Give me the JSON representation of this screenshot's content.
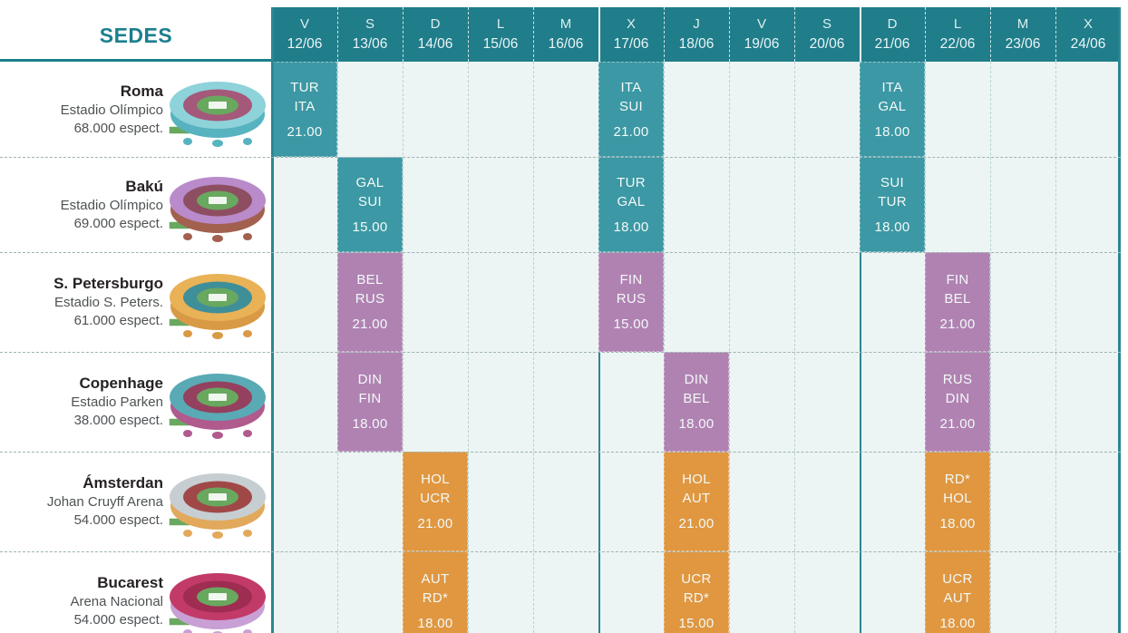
{
  "title": {
    "label": "SEDES"
  },
  "colors": {
    "header_teal": "#207d8a",
    "accent_teal": "#1b7f8e",
    "body_bg": "#ecf5f4",
    "solid_line_teal": "#2a8793",
    "teal": "#3c98a4",
    "purple": "#b082b2",
    "orange": "#e09740"
  },
  "columns": [
    {
      "day": "V",
      "date": "12/06"
    },
    {
      "day": "S",
      "date": "13/06"
    },
    {
      "day": "D",
      "date": "14/06"
    },
    {
      "day": "L",
      "date": "15/06"
    },
    {
      "day": "M",
      "date": "16/06"
    },
    {
      "day": "X",
      "date": "17/06"
    },
    {
      "day": "J",
      "date": "18/06"
    },
    {
      "day": "V",
      "date": "19/06"
    },
    {
      "day": "S",
      "date": "20/06"
    },
    {
      "day": "D",
      "date": "21/06"
    },
    {
      "day": "L",
      "date": "22/06"
    },
    {
      "day": "M",
      "date": "23/06"
    },
    {
      "day": "X",
      "date": "24/06"
    }
  ],
  "group_separators_before_dates": [
    "17/06",
    "21/06"
  ],
  "venues": [
    {
      "name": "Roma",
      "stadium": "Estadio Olímpico",
      "capacity": "68.000 espect.",
      "icon": "stadium-roma-icon",
      "icon_colors": {
        "ring": "#8ed2da",
        "wall": "#57b3c0",
        "inner": "#a4587a",
        "field": "#69a85f"
      },
      "matches": [
        {
          "date": "12/06",
          "home": "TUR",
          "away": "ITA",
          "time": "21.00",
          "color": "teal"
        },
        {
          "date": "17/06",
          "home": "ITA",
          "away": "SUI",
          "time": "21.00",
          "color": "teal"
        },
        {
          "date": "21/06",
          "home": "ITA",
          "away": "GAL",
          "time": "18.00",
          "color": "teal"
        }
      ]
    },
    {
      "name": "Bakú",
      "stadium": "Estadio Olímpico",
      "capacity": "69.000 espect.",
      "icon": "stadium-baku-icon",
      "icon_colors": {
        "ring": "#b98bca",
        "wall": "#a2604f",
        "inner": "#8e4e62",
        "field": "#69a85f"
      },
      "matches": [
        {
          "date": "13/06",
          "home": "GAL",
          "away": "SUI",
          "time": "15.00",
          "color": "teal"
        },
        {
          "date": "17/06",
          "home": "TUR",
          "away": "GAL",
          "time": "18.00",
          "color": "teal"
        },
        {
          "date": "21/06",
          "home": "SUI",
          "away": "TUR",
          "time": "18.00",
          "color": "teal"
        }
      ]
    },
    {
      "name": "S. Petersburgo",
      "stadium": "Estadio S. Peters.",
      "capacity": "61.000 espect.",
      "icon": "stadium-petersburgo-icon",
      "icon_colors": {
        "ring": "#e9b257",
        "wall": "#d99a45",
        "inner": "#3f8f99",
        "field": "#69a85f"
      },
      "matches": [
        {
          "date": "13/06",
          "home": "BEL",
          "away": "RUS",
          "time": "21.00",
          "color": "purple"
        },
        {
          "date": "17/06",
          "home": "FIN",
          "away": "RUS",
          "time": "15.00",
          "color": "purple"
        },
        {
          "date": "22/06",
          "home": "FIN",
          "away": "BEL",
          "time": "21.00",
          "color": "purple"
        }
      ]
    },
    {
      "name": "Copenhage",
      "stadium": "Estadio Parken",
      "capacity": "38.000 espect.",
      "icon": "stadium-copenhage-icon",
      "icon_colors": {
        "ring": "#59aab4",
        "wall": "#b05a8e",
        "inner": "#94405e",
        "field": "#69a85f"
      },
      "matches": [
        {
          "date": "13/06",
          "home": "DIN",
          "away": "FIN",
          "time": "18.00",
          "color": "purple"
        },
        {
          "date": "18/06",
          "home": "DIN",
          "away": "BEL",
          "time": "18.00",
          "color": "purple"
        },
        {
          "date": "22/06",
          "home": "RUS",
          "away": "DIN",
          "time": "21.00",
          "color": "purple"
        }
      ]
    },
    {
      "name": "Ámsterdan",
      "stadium": "Johan Cruyff Arena",
      "capacity": "54.000 espect.",
      "icon": "stadium-amsterdam-icon",
      "icon_colors": {
        "ring": "#c6ced2",
        "wall": "#e2a95c",
        "inner": "#a04848",
        "field": "#69a85f"
      },
      "matches": [
        {
          "date": "14/06",
          "home": "HOL",
          "away": "UCR",
          "time": "21.00",
          "color": "orange"
        },
        {
          "date": "18/06",
          "home": "HOL",
          "away": "AUT",
          "time": "21.00",
          "color": "orange"
        },
        {
          "date": "22/06",
          "home": "RD*",
          "away": "HOL",
          "time": "18.00",
          "color": "orange"
        }
      ]
    },
    {
      "name": "Bucarest",
      "stadium": "Arena Nacional",
      "capacity": "54.000 espect.",
      "icon": "stadium-bucarest-icon",
      "icon_colors": {
        "ring": "#c23a68",
        "wall": "#c8a0d5",
        "inner": "#9e2d51",
        "field": "#69a85f"
      },
      "matches": [
        {
          "date": "14/06",
          "home": "AUT",
          "away": "RD*",
          "time": "18.00",
          "color": "orange"
        },
        {
          "date": "18/06",
          "home": "UCR",
          "away": "RD*",
          "time": "15.00",
          "color": "orange"
        },
        {
          "date": "22/06",
          "home": "UCR",
          "away": "AUT",
          "time": "18.00",
          "color": "orange"
        }
      ]
    }
  ],
  "chart_data": {
    "type": "table",
    "title": "SEDES",
    "columns": [
      "V 12/06",
      "S 13/06",
      "D 14/06",
      "L 15/06",
      "M 16/06",
      "X 17/06",
      "J 18/06",
      "V 19/06",
      "S 20/06",
      "D 21/06",
      "L 22/06",
      "M 23/06",
      "X 24/06"
    ],
    "rows": [
      {
        "venue": "Roma",
        "stadium": "Estadio Olímpico",
        "capacity": "68.000 espect.",
        "matches": [
          {
            "date": "12/06",
            "teams": "TUR-ITA",
            "time": "21.00"
          },
          {
            "date": "17/06",
            "teams": "ITA-SUI",
            "time": "21.00"
          },
          {
            "date": "21/06",
            "teams": "ITA-GAL",
            "time": "18.00"
          }
        ]
      },
      {
        "venue": "Bakú",
        "stadium": "Estadio Olímpico",
        "capacity": "69.000 espect.",
        "matches": [
          {
            "date": "13/06",
            "teams": "GAL-SUI",
            "time": "15.00"
          },
          {
            "date": "17/06",
            "teams": "TUR-GAL",
            "time": "18.00"
          },
          {
            "date": "21/06",
            "teams": "SUI-TUR",
            "time": "18.00"
          }
        ]
      },
      {
        "venue": "S. Petersburgo",
        "stadium": "Estadio S. Peters.",
        "capacity": "61.000 espect.",
        "matches": [
          {
            "date": "13/06",
            "teams": "BEL-RUS",
            "time": "21.00"
          },
          {
            "date": "17/06",
            "teams": "FIN-RUS",
            "time": "15.00"
          },
          {
            "date": "22/06",
            "teams": "FIN-BEL",
            "time": "21.00"
          }
        ]
      },
      {
        "venue": "Copenhage",
        "stadium": "Estadio Parken",
        "capacity": "38.000 espect.",
        "matches": [
          {
            "date": "13/06",
            "teams": "DIN-FIN",
            "time": "18.00"
          },
          {
            "date": "18/06",
            "teams": "DIN-BEL",
            "time": "18.00"
          },
          {
            "date": "22/06",
            "teams": "RUS-DIN",
            "time": "21.00"
          }
        ]
      },
      {
        "venue": "Ámsterdan",
        "stadium": "Johan Cruyff Arena",
        "capacity": "54.000 espect.",
        "matches": [
          {
            "date": "14/06",
            "teams": "HOL-UCR",
            "time": "21.00"
          },
          {
            "date": "18/06",
            "teams": "HOL-AUT",
            "time": "21.00"
          },
          {
            "date": "22/06",
            "teams": "RD*-HOL",
            "time": "18.00"
          }
        ]
      },
      {
        "venue": "Bucarest",
        "stadium": "Arena Nacional",
        "capacity": "54.000 espect.",
        "matches": [
          {
            "date": "14/06",
            "teams": "AUT-RD*",
            "time": "18.00"
          },
          {
            "date": "18/06",
            "teams": "UCR-RD*",
            "time": "15.00"
          },
          {
            "date": "22/06",
            "teams": "UCR-AUT",
            "time": "18.00"
          }
        ]
      }
    ]
  }
}
